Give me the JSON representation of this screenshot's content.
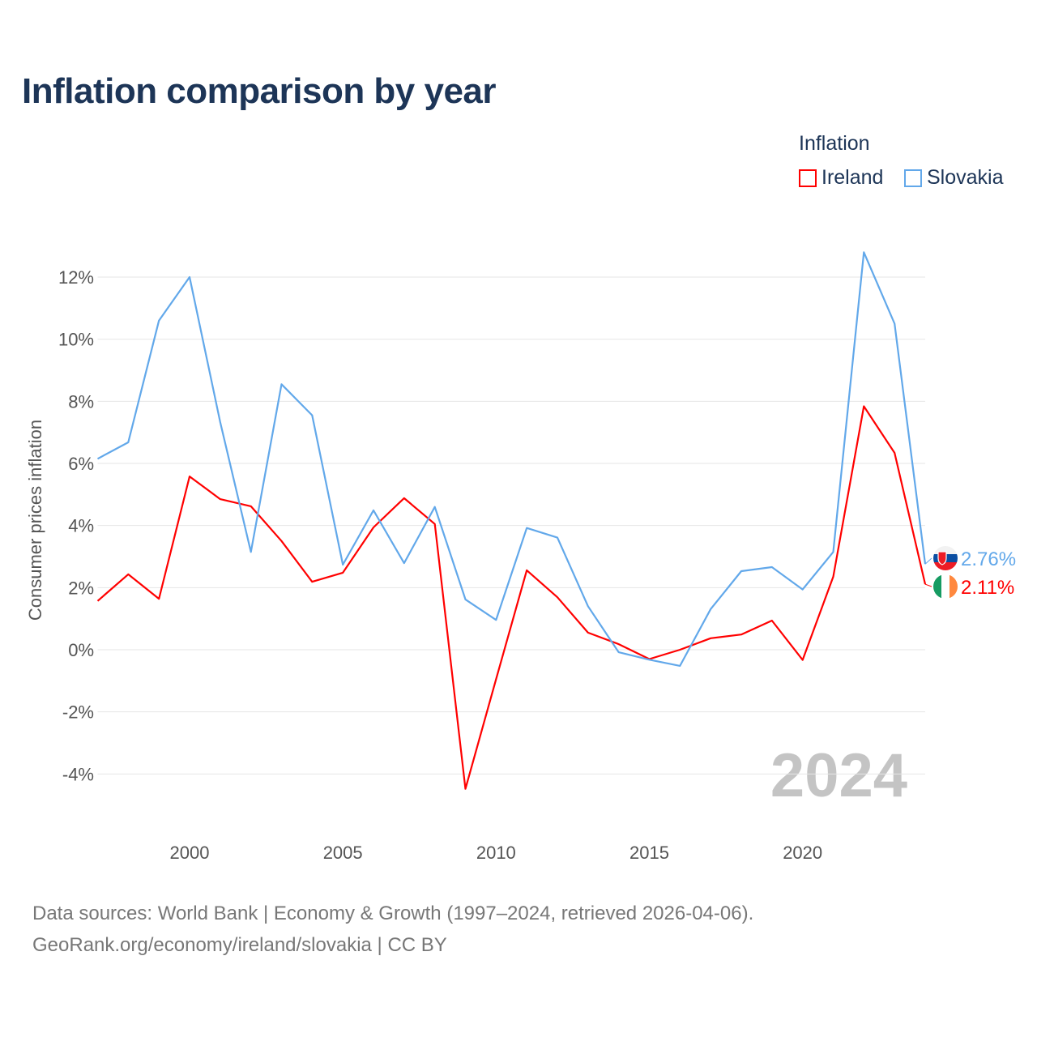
{
  "title": "Inflation comparison by year",
  "legend": {
    "title": "Inflation",
    "items": [
      {
        "label": "Ireland",
        "color": "#ff0000"
      },
      {
        "label": "Slovakia",
        "color": "#62a8ea"
      }
    ]
  },
  "year_watermark": "2024",
  "footer": {
    "line1": "Data sources: World Bank | Economy & Growth (1997–2024, retrieved 2026-04-06).",
    "line2": "GeoRank.org/economy/ireland/slovakia | CC BY"
  },
  "chart_data": {
    "type": "line",
    "title": "Inflation comparison by year",
    "xlabel": "",
    "ylabel": "Consumer prices inflation",
    "xlim": [
      1997,
      2024
    ],
    "ylim": [
      -5,
      13
    ],
    "x_ticks": [
      2000,
      2005,
      2010,
      2015,
      2020
    ],
    "y_ticks": [
      -4,
      -2,
      0,
      2,
      4,
      6,
      8,
      10,
      12
    ],
    "y_tick_labels": [
      "-4%",
      "-2%",
      "0%",
      "2%",
      "4%",
      "6%",
      "8%",
      "10%",
      "12%"
    ],
    "grid": true,
    "legend_position": "top-right",
    "x": [
      1997,
      1998,
      1999,
      2000,
      2001,
      2002,
      2003,
      2004,
      2005,
      2006,
      2007,
      2008,
      2009,
      2010,
      2011,
      2012,
      2013,
      2014,
      2015,
      2016,
      2017,
      2018,
      2019,
      2020,
      2021,
      2022,
      2023,
      2024
    ],
    "series": [
      {
        "name": "Ireland",
        "color": "#ff0000",
        "end_label": "2.11%",
        "values": [
          1.57,
          2.43,
          1.64,
          5.58,
          4.85,
          4.62,
          3.5,
          2.19,
          2.48,
          3.94,
          4.88,
          4.05,
          -4.48,
          -0.95,
          2.56,
          1.69,
          0.55,
          0.18,
          -0.3,
          0.0,
          0.37,
          0.49,
          0.94,
          -0.33,
          2.35,
          7.84,
          6.34,
          2.11
        ]
      },
      {
        "name": "Slovakia",
        "color": "#62a8ea",
        "end_label": "2.76%",
        "values": [
          6.15,
          6.68,
          10.6,
          12.0,
          7.33,
          3.15,
          8.55,
          7.55,
          2.74,
          4.49,
          2.79,
          4.6,
          1.62,
          0.96,
          3.92,
          3.61,
          1.4,
          -0.08,
          -0.32,
          -0.52,
          1.31,
          2.53,
          2.66,
          1.94,
          3.15,
          12.8,
          10.5,
          2.76
        ]
      }
    ]
  }
}
